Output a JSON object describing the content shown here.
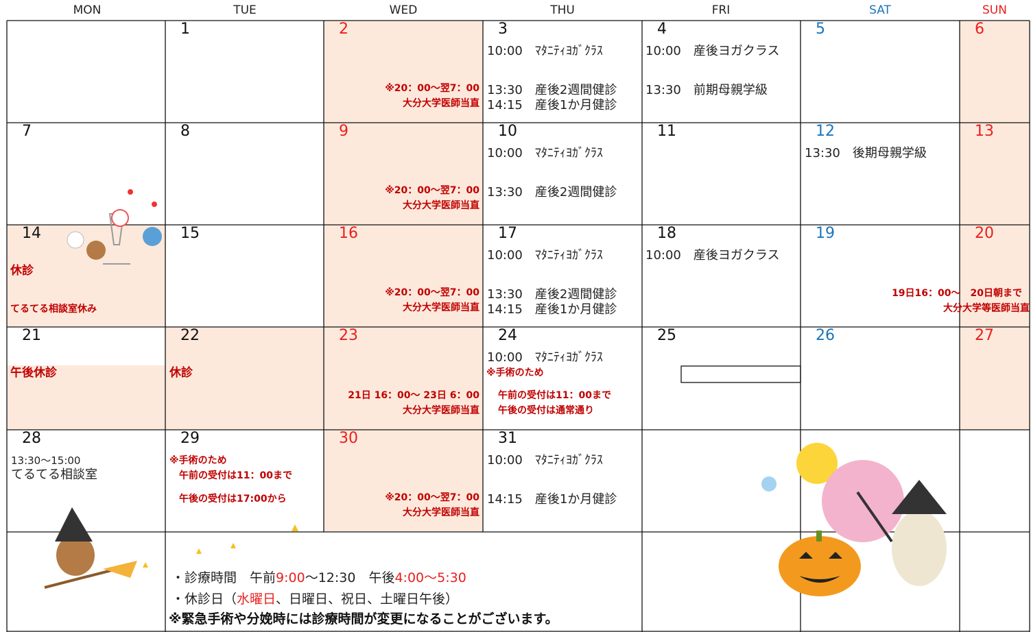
{
  "weekdays": [
    "MON",
    "TUE",
    "WED",
    "THU",
    "FRI",
    "SAT",
    "SUN"
  ],
  "cells": [
    {
      "day": "1"
    },
    {
      "day": "2",
      "lines": [
        "※20：00～翌7：00",
        "大分大学医師当直"
      ]
    },
    {
      "day": "3",
      "lines": [
        "10:00　ﾏﾀﾆﾃｨﾖｶﾞｸﾗｽ",
        "13:30　産後2週間健診",
        "14:15　産後1か月健診"
      ]
    },
    {
      "day": "4",
      "lines": [
        "10:00　産後ヨガクラス",
        "13:30　前期母親学級"
      ]
    },
    {
      "day": "5"
    },
    {
      "day": "6"
    },
    {
      "day": "7"
    },
    {
      "day": "8"
    },
    {
      "day": "9",
      "lines": [
        "※20：00～翌7：00",
        "大分大学医師当直"
      ]
    },
    {
      "day": "10",
      "lines": [
        "10:00　ﾏﾀﾆﾃｨﾖｶﾞｸﾗｽ",
        "13:30　産後2週間健診"
      ]
    },
    {
      "day": "11"
    },
    {
      "day": "12",
      "lines": [
        "13:30　後期母親学級"
      ]
    },
    {
      "day": "13"
    },
    {
      "day": "14",
      "lines": [
        "休診",
        "てるてる相談室休み"
      ]
    },
    {
      "day": "15"
    },
    {
      "day": "16",
      "lines": [
        "※20：00～翌7：00",
        "大分大学医師当直"
      ]
    },
    {
      "day": "17",
      "lines": [
        "10:00　ﾏﾀﾆﾃｨﾖｶﾞｸﾗｽ",
        "13:30　産後2週間健診",
        "14:15　産後1か月健診"
      ]
    },
    {
      "day": "18",
      "lines": [
        "10:00　産後ヨガクラス"
      ]
    },
    {
      "day": "19",
      "lines": [
        "19日16：00～　20日朝まで",
        "大分大学等医師当直"
      ]
    },
    {
      "day": "20"
    },
    {
      "day": "21",
      "lines": [
        "午後休診"
      ]
    },
    {
      "day": "22",
      "lines": [
        "休診"
      ]
    },
    {
      "day": "23",
      "lines": [
        "21日 16：00～ 23日 6：00",
        "大分大学医師当直"
      ]
    },
    {
      "day": "24",
      "lines": [
        "10:00　ﾏﾀﾆﾃｨﾖｶﾞｸﾗｽ",
        "※手術のため",
        "午前の受付は11：00まで",
        "午後の受付は通常通り"
      ]
    },
    {
      "day": "25"
    },
    {
      "day": "26"
    },
    {
      "day": "27"
    },
    {
      "day": "28",
      "lines": [
        "13:30～15:00",
        "てるてる相談室"
      ]
    },
    {
      "day": "29",
      "lines": [
        "※手術のため",
        "午前の受付は11：00まで",
        "午後の受付は17:00から"
      ]
    },
    {
      "day": "30",
      "lines": [
        "※20：00～翌7：00",
        "大分大学医師当直"
      ]
    },
    {
      "day": "31",
      "lines": [
        "10:00　ﾏﾀﾆﾃｨﾖｶﾞｸﾗｽ",
        "14:15　産後1か月健診"
      ]
    }
  ],
  "footer": {
    "hours": [
      "・診療時間　午前",
      "9:00",
      "～12:30　午後",
      "4:00～5:30"
    ],
    "closed": [
      "・休診日（",
      "水曜日",
      "、日曜日、祝日、土曜日午後）"
    ],
    "notice": "※緊急手術や分娩時には診療時間が変更になることがございます。"
  }
}
